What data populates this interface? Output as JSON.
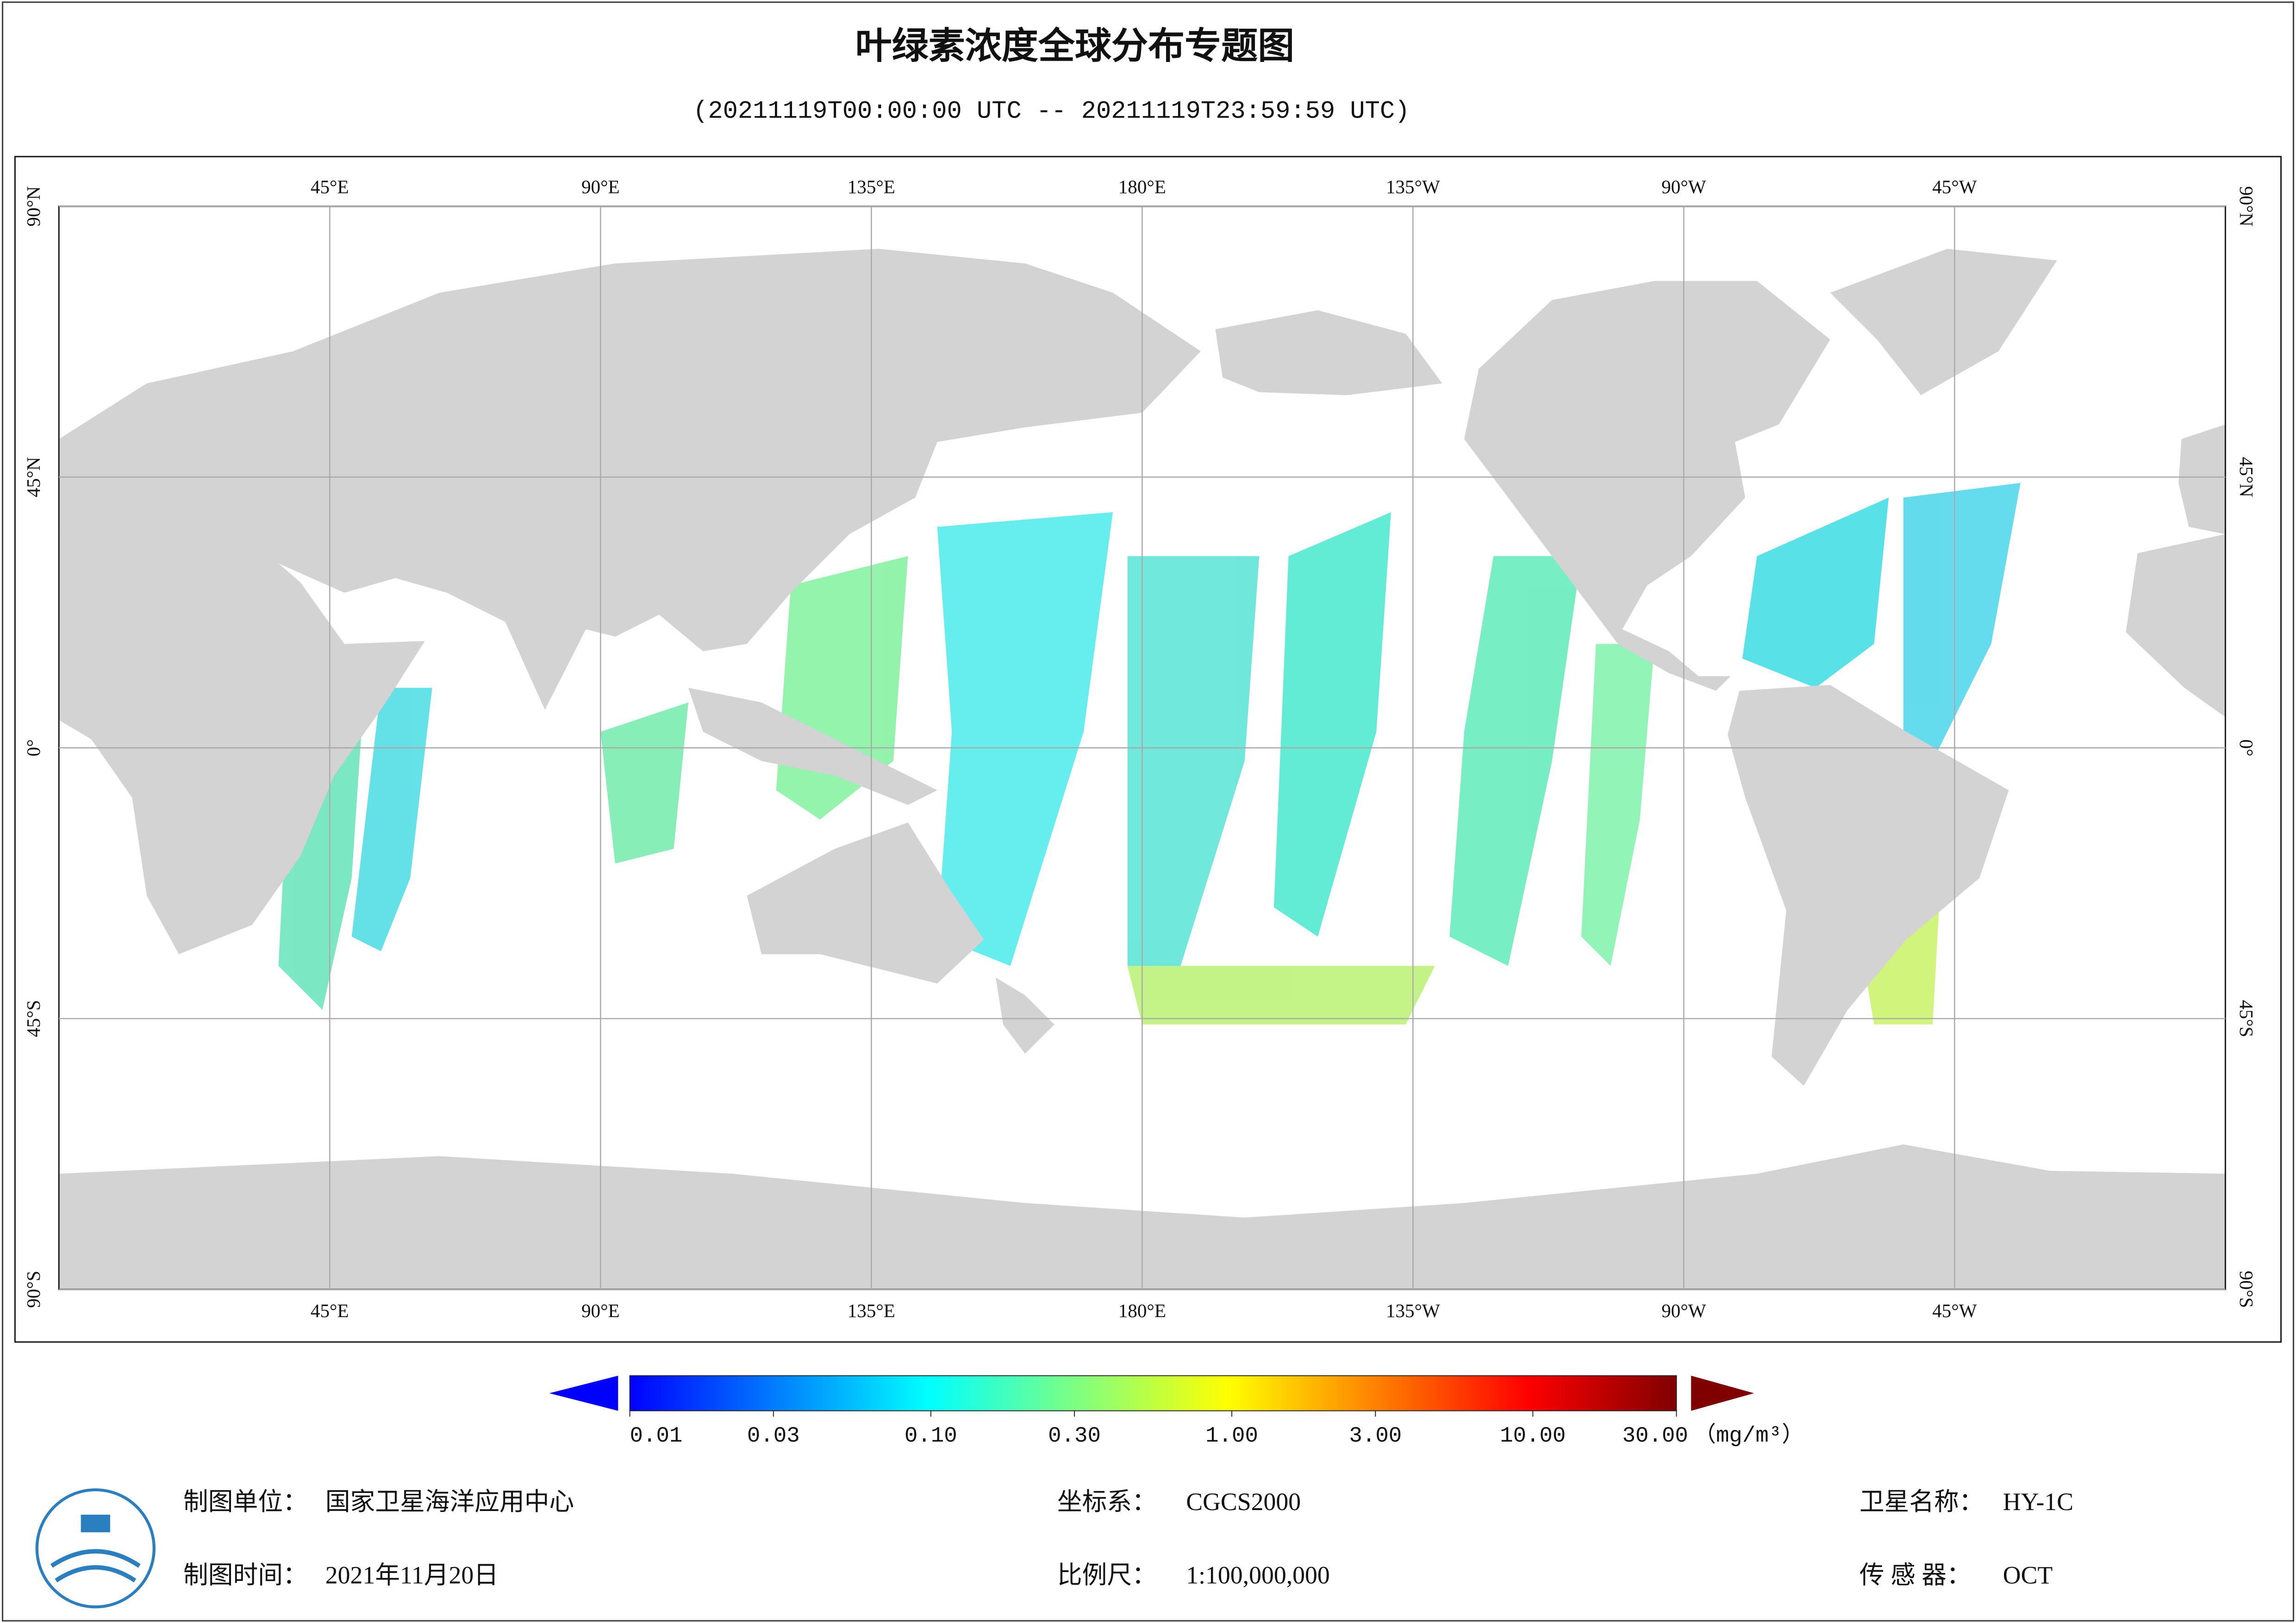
{
  "title": "叶绿素浓度全球分布专题图",
  "subtitle": "(20211119T00:00:00 UTC -- 20211119T23:59:59 UTC)",
  "map": {
    "lon_ticks": [
      {
        "value": 45,
        "label": "45°E"
      },
      {
        "value": 90,
        "label": "90°E"
      },
      {
        "value": 135,
        "label": "135°E"
      },
      {
        "value": 180,
        "label": "180°E"
      },
      {
        "value": -135,
        "label": "135°W"
      },
      {
        "value": -90,
        "label": "90°W"
      },
      {
        "value": -45,
        "label": "45°W"
      }
    ],
    "lat_ticks": [
      {
        "value": 90,
        "label": "90°N"
      },
      {
        "value": 45,
        "label": "45°N"
      },
      {
        "value": 0,
        "label": "0°"
      },
      {
        "value": -45,
        "label": "45°S"
      },
      {
        "value": -90,
        "label": "90°S"
      }
    ]
  },
  "colorbar": {
    "scale": "log",
    "range": [
      0.01,
      30
    ],
    "ticks": [
      {
        "value": 0.01,
        "label": "0.01"
      },
      {
        "value": 0.03,
        "label": "0.03"
      },
      {
        "value": 0.1,
        "label": "0.10"
      },
      {
        "value": 0.3,
        "label": "0.30"
      },
      {
        "value": 1,
        "label": "1.00"
      },
      {
        "value": 3,
        "label": "3.00"
      },
      {
        "value": 10,
        "label": "10.00"
      },
      {
        "value": 30,
        "label": "30.00"
      }
    ],
    "unit": "（mg/m³）",
    "colors": [
      "#0000ff",
      "#0080ff",
      "#00ffff",
      "#80ff80",
      "#ffff00",
      "#ff8000",
      "#ff0000",
      "#800000"
    ]
  },
  "footer": [
    {
      "label": "制图单位：",
      "value": "国家卫星海洋应用中心"
    },
    {
      "label": "坐标系：",
      "value": "CGCS2000"
    },
    {
      "label": "卫星名称：",
      "value": "HY-1C"
    },
    {
      "label": "制图时间：",
      "value": "2021年11月20日"
    },
    {
      "label": "比例尺：",
      "value": "1:100,000,000"
    },
    {
      "label": "传 感 器：",
      "value": "OCT"
    }
  ]
}
